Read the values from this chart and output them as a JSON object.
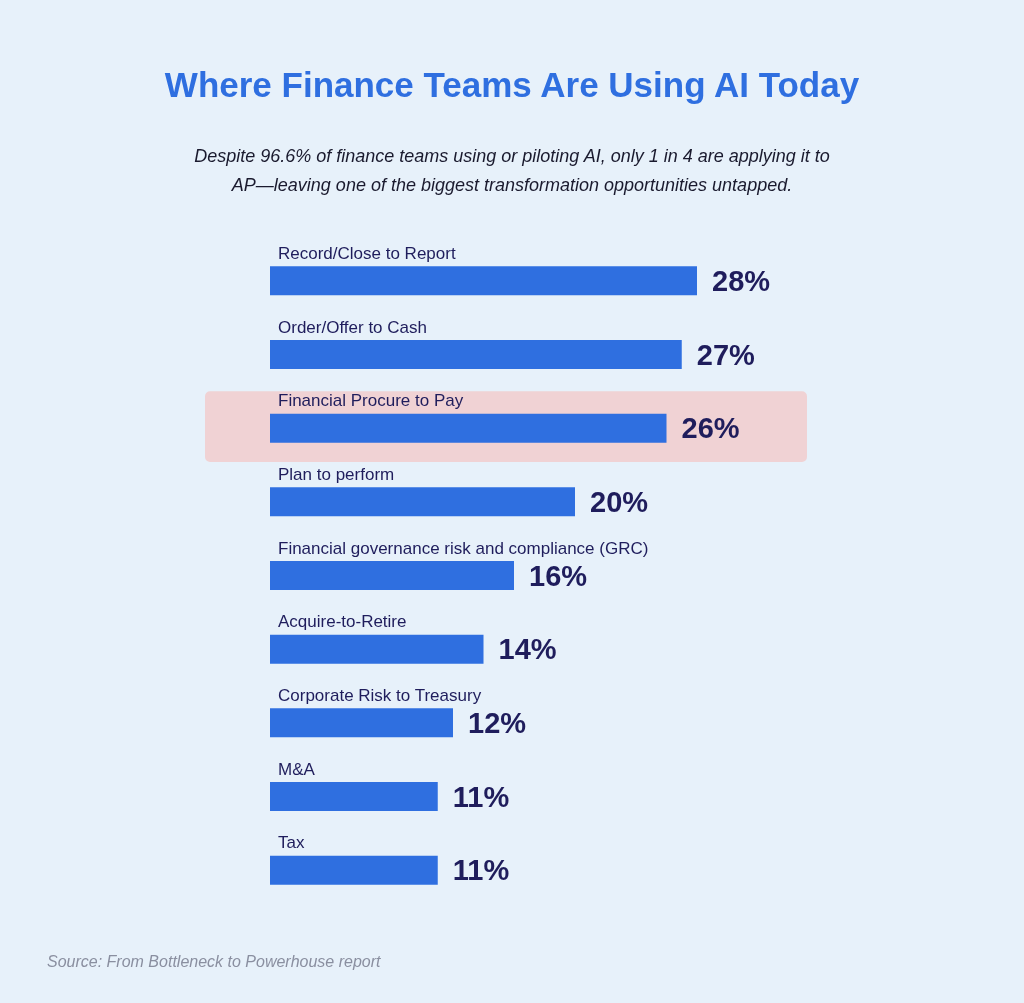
{
  "chart_data": {
    "type": "bar",
    "orientation": "horizontal",
    "title": "Where Finance Teams Are Using AI Today",
    "subtitle": "Despite 96.6% of finance teams using or piloting AI, only 1 in 4 are applying it to\nAP—leaving one of the biggest transformation opportunities untapped.",
    "categories": [
      "Record/Close to Report",
      "Order/Offer to Cash",
      "Financial Procure to Pay",
      "Plan to perform",
      "Financial governance risk and compliance (GRC)",
      "Acquire-to-Retire",
      "Corporate Risk to Treasury",
      "M&A",
      "Tax"
    ],
    "values": [
      28,
      27,
      26,
      20,
      16,
      14,
      12,
      11,
      11
    ],
    "value_labels": [
      "28%",
      "27%",
      "26%",
      "20%",
      "16%",
      "14%",
      "12%",
      "11%",
      "11%"
    ],
    "color": "#2f6fe0",
    "bands": [
      {
        "axis": "y",
        "from": "Financial Procure to Pay",
        "to": "Financial Procure to Pay",
        "color": "#f0d2d4"
      }
    ],
    "annotations": [
      "Source: From Bottleneck to Powerhouse report"
    ]
  }
}
